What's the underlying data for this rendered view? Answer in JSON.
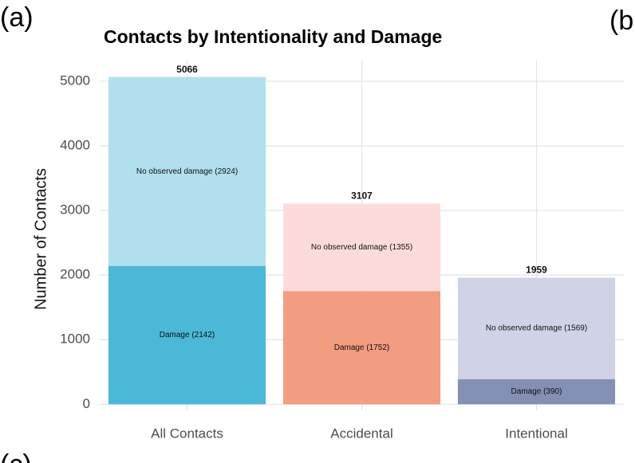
{
  "chart_data": {
    "type": "stacked-bar",
    "title": "Contacts by Intentionality and Damage",
    "y_label": "Number of Contacts",
    "panel_labels": [
      "(a)",
      "(b",
      "(c)"
    ],
    "categories": [
      "All Contacts",
      "Accidental",
      "Intentional"
    ],
    "series": [
      {
        "colors": [
          "#4ab8d6",
          "#f29c80",
          "#8390b4"
        ],
        "values": [
          2142,
          1752,
          390
        ],
        "value_labels": [
          "Damage (2142)",
          "Damage (1752)",
          "Damage (390)"
        ]
      },
      {
        "colors": [
          "#b1dfee",
          "#fcdcdb",
          "#d0d2e6"
        ],
        "values": [
          2924,
          1355,
          1569
        ],
        "value_labels": [
          "No observed damage (2924)",
          "No observed damage (1355)",
          "No observed damage (1569)"
        ]
      }
    ],
    "totals": [
      5066,
      3107,
      1959
    ],
    "ylim": [
      -95,
      5320
    ],
    "yticks": [
      0,
      1000,
      2000,
      3000,
      4000,
      5000
    ],
    "grid": true
  }
}
